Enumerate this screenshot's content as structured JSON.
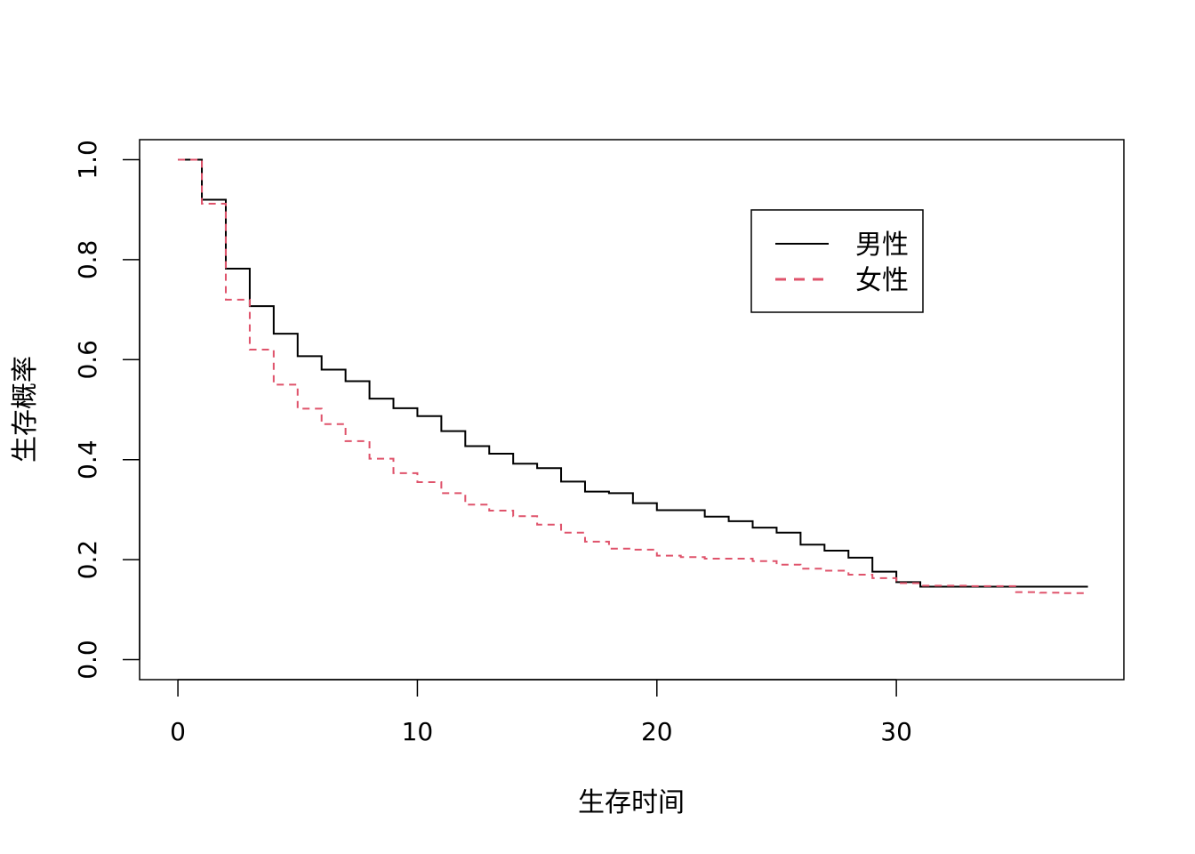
{
  "chart_data": {
    "type": "line",
    "step": true,
    "title": "",
    "xlabel": "生存时间",
    "ylabel": "生存概率",
    "xlim": [
      -1.6,
      39.5
    ],
    "ylim": [
      -0.04,
      1.04
    ],
    "xticks": [
      0,
      10,
      20,
      30
    ],
    "xtick_labels": [
      "0",
      "10",
      "20",
      "30"
    ],
    "yticks": [
      0.0,
      0.2,
      0.4,
      0.6,
      0.8,
      1.0
    ],
    "ytick_labels": [
      "0.0",
      "0.2",
      "0.4",
      "0.6",
      "0.8",
      "1.0"
    ],
    "grid": false,
    "legend_position": "top-right",
    "series": [
      {
        "name": "男性",
        "color": "#000000",
        "dash": "solid",
        "x": [
          0,
          1,
          2,
          3,
          4,
          5,
          6,
          7,
          8,
          9,
          10,
          11,
          12,
          13,
          14,
          15,
          16,
          17,
          18,
          19,
          20,
          21,
          22,
          23,
          24,
          25,
          26,
          27,
          28,
          29,
          30,
          31,
          32,
          33,
          34,
          35,
          36,
          37,
          38
        ],
        "y": [
          1.0,
          0.92,
          0.782,
          0.707,
          0.652,
          0.607,
          0.58,
          0.557,
          0.522,
          0.503,
          0.487,
          0.457,
          0.427,
          0.412,
          0.392,
          0.383,
          0.356,
          0.336,
          0.333,
          0.313,
          0.299,
          0.299,
          0.286,
          0.277,
          0.264,
          0.254,
          0.23,
          0.218,
          0.204,
          0.176,
          0.155,
          0.146,
          0.146,
          0.146,
          0.146,
          0.146,
          0.146,
          0.146,
          0.146
        ]
      },
      {
        "name": "女性",
        "color": "#DF536B",
        "dash": "dashed",
        "x": [
          0,
          1,
          2,
          3,
          4,
          5,
          6,
          7,
          8,
          9,
          10,
          11,
          12,
          13,
          14,
          15,
          16,
          17,
          18,
          19,
          20,
          21,
          22,
          23,
          24,
          25,
          26,
          27,
          28,
          29,
          30,
          31,
          32,
          33,
          34,
          35,
          36,
          37,
          38
        ],
        "y": [
          1.0,
          0.912,
          0.72,
          0.62,
          0.55,
          0.502,
          0.471,
          0.437,
          0.402,
          0.373,
          0.355,
          0.333,
          0.31,
          0.298,
          0.287,
          0.27,
          0.254,
          0.236,
          0.222,
          0.22,
          0.208,
          0.205,
          0.202,
          0.202,
          0.197,
          0.19,
          0.182,
          0.178,
          0.17,
          0.163,
          0.153,
          0.148,
          0.148,
          0.147,
          0.147,
          0.135,
          0.134,
          0.133,
          0.133
        ]
      }
    ]
  }
}
